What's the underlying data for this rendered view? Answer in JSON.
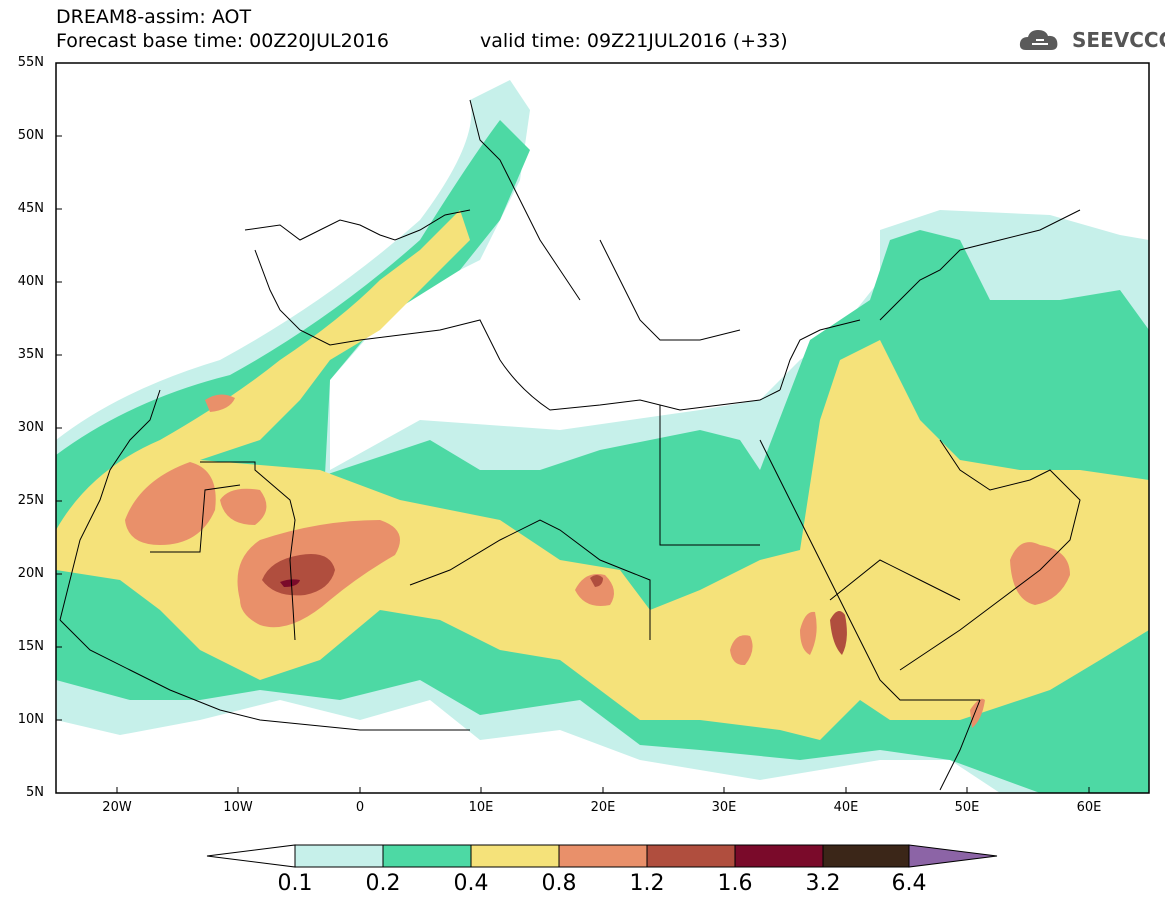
{
  "header": {
    "title": "DREAM8-assim: AOT",
    "base_time": "Forecast base time: 00Z20JUL2016",
    "valid_time": "valid time: 09Z21JUL2016 (+33)",
    "logo_text": "SEEVCCC",
    "logo_icon": "cloud-icon"
  },
  "map": {
    "lat_labels": [
      "55N",
      "50N",
      "45N",
      "40N",
      "35N",
      "30N",
      "25N",
      "20N",
      "15N",
      "10N",
      "5N"
    ],
    "lon_labels": [
      "20W",
      "10W",
      "0",
      "10E",
      "20E",
      "30E",
      "40E",
      "50E",
      "60E"
    ],
    "extent": {
      "lon_min": -25,
      "lon_max": 65,
      "lat_min": 5,
      "lat_max": 55
    }
  },
  "colorbar": {
    "labels": [
      "0.1",
      "0.2",
      "0.4",
      "0.8",
      "1.2",
      "1.6",
      "3.2",
      "6.4"
    ],
    "colors": [
      "#ffffff",
      "#c6f0ea",
      "#4dd9a4",
      "#f5e27a",
      "#e9906a",
      "#b04e3e",
      "#7a0a2a",
      "#3b2618",
      "#8c64a6"
    ]
  }
}
